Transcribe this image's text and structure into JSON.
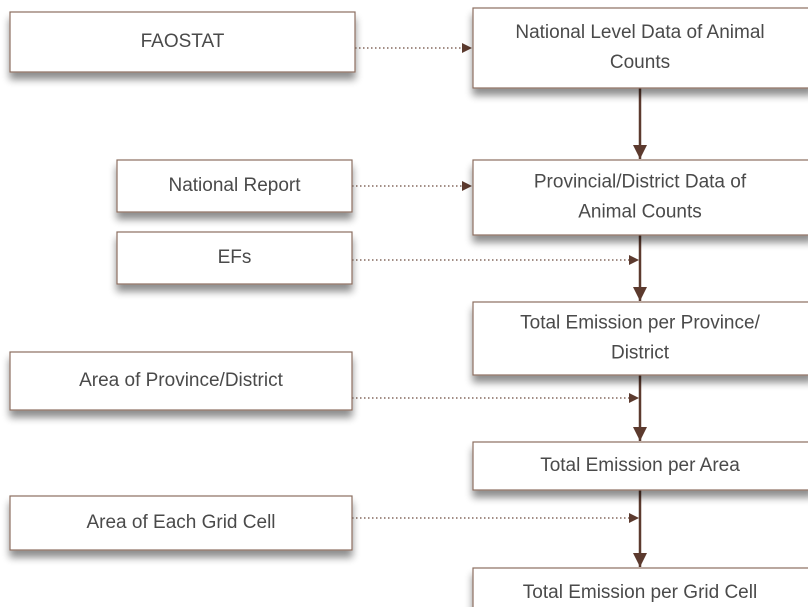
{
  "nodes": [
    {
      "lines": [
        "FAOSTAT"
      ]
    },
    {
      "lines": [
        "National Level Data of Animal",
        "Counts"
      ]
    },
    {
      "lines": [
        "National Report"
      ]
    },
    {
      "lines": [
        "Provincial/District Data of",
        "Animal Counts"
      ]
    },
    {
      "lines": [
        "EFs"
      ]
    },
    {
      "lines": [
        "Total Emission per Province/",
        "District"
      ]
    },
    {
      "lines": [
        "Area of Province/District"
      ]
    },
    {
      "lines": [
        "Total Emission per Area"
      ]
    },
    {
      "lines": [
        "Area of Each Grid Cell"
      ]
    },
    {
      "lines": [
        "Total Emission per Grid Cell"
      ]
    }
  ]
}
